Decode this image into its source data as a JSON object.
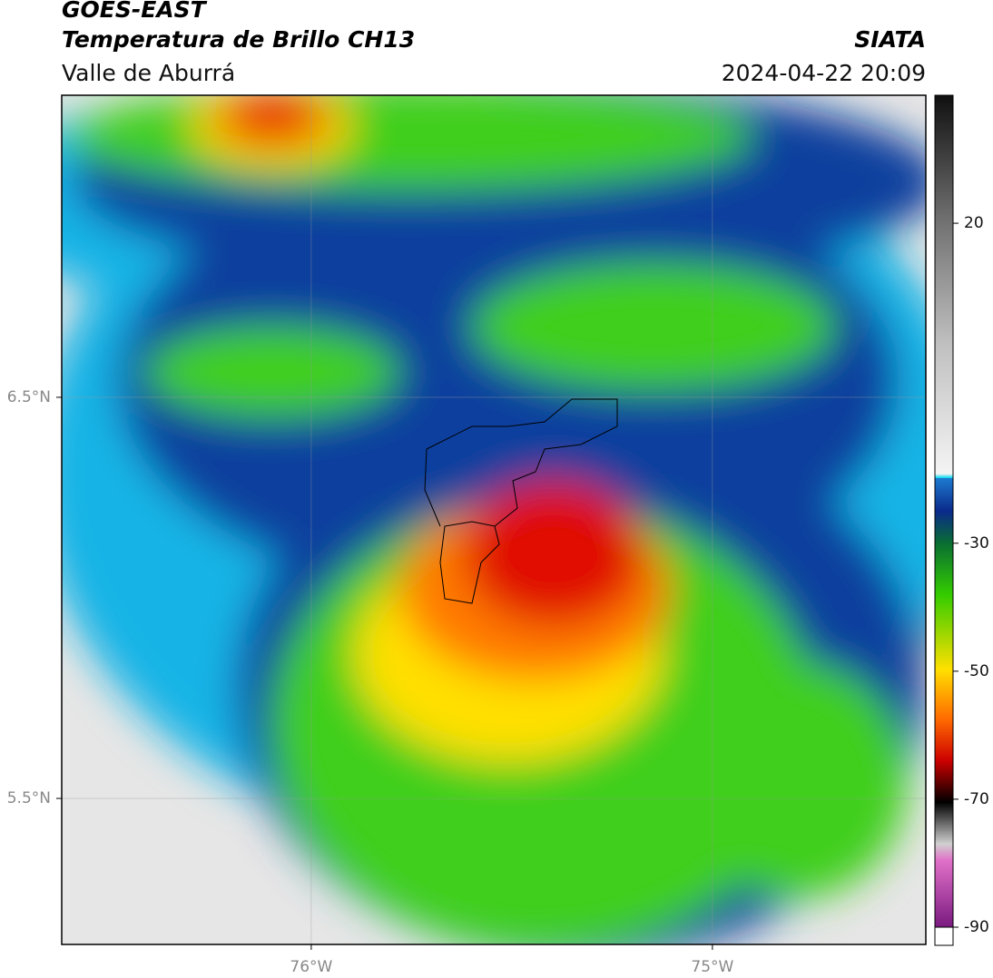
{
  "header": {
    "title": "GOES-EAST",
    "subtitle": "Temperatura de Brillo CH13",
    "region": "Valle de Aburrá",
    "source": "SIATA",
    "timestamp": "2024-04-22 20:09"
  },
  "chart_data": {
    "type": "map",
    "xlim": [
      -76.622,
      -74.468
    ],
    "ylim": [
      5.136,
      7.253
    ],
    "xticks": [
      {
        "value": -76,
        "label": "76°W"
      },
      {
        "value": -75,
        "label": "75°W"
      }
    ],
    "yticks": [
      {
        "value": 5.5,
        "label": "5.5°N"
      },
      {
        "value": 6.5,
        "label": "6.5°N"
      }
    ],
    "grid": true,
    "colorbar": {
      "lim": [
        -90,
        40
      ],
      "ticks": [
        -90,
        -70,
        -50,
        -30,
        20
      ]
    }
  }
}
